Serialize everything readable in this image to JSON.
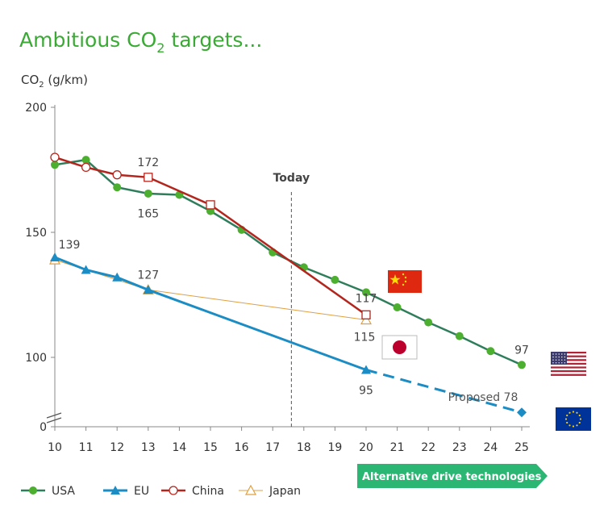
{
  "title_main": "Ambitious CO",
  "title_sub": "2",
  "title_tail": " targets...",
  "ylabel_main": "CO",
  "ylabel_sub": "2",
  "ylabel_tail": " (g/km)",
  "today_label": "Today",
  "alt_tech_label": "Alternative drive technologies",
  "proposed_label": "Proposed 78",
  "colors": {
    "title": "#3aaa35",
    "usa": "#4caf2f",
    "usa_line": "#2e7d5b",
    "eu": "#1b8cc4",
    "china": "#b3261e",
    "japan": "#e0a040",
    "arrow": "#2bb673",
    "axis": "#888888"
  },
  "chart_data": {
    "type": "line",
    "x_ticks": [
      "10",
      "11",
      "12",
      "13",
      "14",
      "15",
      "16",
      "17",
      "18",
      "19",
      "20",
      "21",
      "22",
      "23",
      "24",
      "25"
    ],
    "y_ticks": [
      "0",
      "100",
      "150",
      "200"
    ],
    "ylim": [
      70,
      200
    ],
    "axis_break": true,
    "today_x": 17.6,
    "series": [
      {
        "name": "USA",
        "marker": "circle-filled",
        "x": [
          10,
          11,
          12,
          13,
          14,
          15,
          16,
          17,
          18,
          19,
          20,
          21,
          22,
          23,
          24,
          25
        ],
        "y": [
          177,
          179,
          168,
          165.5,
          165,
          158.5,
          151,
          142,
          136,
          131,
          126,
          120,
          114,
          108.5,
          102.5,
          97
        ]
      },
      {
        "name": "EU",
        "marker": "triangle-filled",
        "x": [
          10,
          11,
          12,
          13,
          20
        ],
        "y": [
          140,
          135,
          132,
          127,
          95
        ],
        "projection": {
          "x": [
            20,
            25
          ],
          "y": [
            95,
            78
          ]
        }
      },
      {
        "name": "China",
        "marker": "circle-open",
        "x": [
          10,
          11,
          12,
          13,
          15,
          20
        ],
        "y": [
          180,
          176,
          173,
          172,
          161,
          117
        ]
      },
      {
        "name": "Japan",
        "marker": "triangle-open",
        "x": [
          10,
          13,
          20
        ],
        "y": [
          139,
          127,
          115
        ]
      }
    ],
    "data_labels": [
      {
        "text": "139",
        "x": 10,
        "y": 139
      },
      {
        "text": "172",
        "x": 13,
        "y": 172
      },
      {
        "text": "165",
        "x": 13,
        "y": 165
      },
      {
        "text": "127",
        "x": 13,
        "y": 127
      },
      {
        "text": "117",
        "x": 20,
        "y": 117
      },
      {
        "text": "115",
        "x": 20,
        "y": 115
      },
      {
        "text": "95",
        "x": 20,
        "y": 95
      },
      {
        "text": "97",
        "x": 25,
        "y": 97
      }
    ],
    "legend": {
      "placement": "bottom",
      "items": [
        {
          "label": "USA"
        },
        {
          "label": "EU"
        },
        {
          "label": "China"
        },
        {
          "label": "Japan"
        }
      ]
    },
    "flags": [
      "china-flag-icon",
      "japan-flag-icon",
      "usa-flag-icon",
      "eu-flag-icon"
    ]
  }
}
